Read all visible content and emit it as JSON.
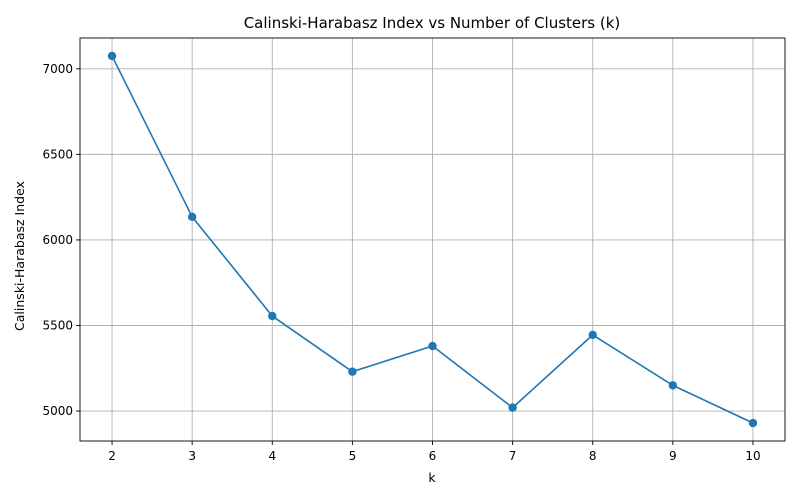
{
  "chart_data": {
    "type": "line",
    "title": "Calinski-Harabasz Index vs Number of Clusters (k)",
    "xlabel": "k",
    "ylabel": "Calinski-Harabasz Index",
    "x": [
      2,
      3,
      4,
      5,
      6,
      7,
      8,
      9,
      10
    ],
    "series": [
      {
        "values": [
          7075,
          6135,
          5555,
          5230,
          5380,
          5020,
          5445,
          5150,
          4930
        ],
        "color": "#1f77b4",
        "marker": "circle"
      }
    ],
    "xlim": [
      1.6,
      10.4
    ],
    "ylim": [
      4825,
      7180
    ],
    "xticks": [
      2,
      3,
      4,
      5,
      6,
      7,
      8,
      9,
      10
    ],
    "yticks": [
      5000,
      5500,
      6000,
      6500,
      7000
    ],
    "grid": true,
    "legend": "none"
  }
}
